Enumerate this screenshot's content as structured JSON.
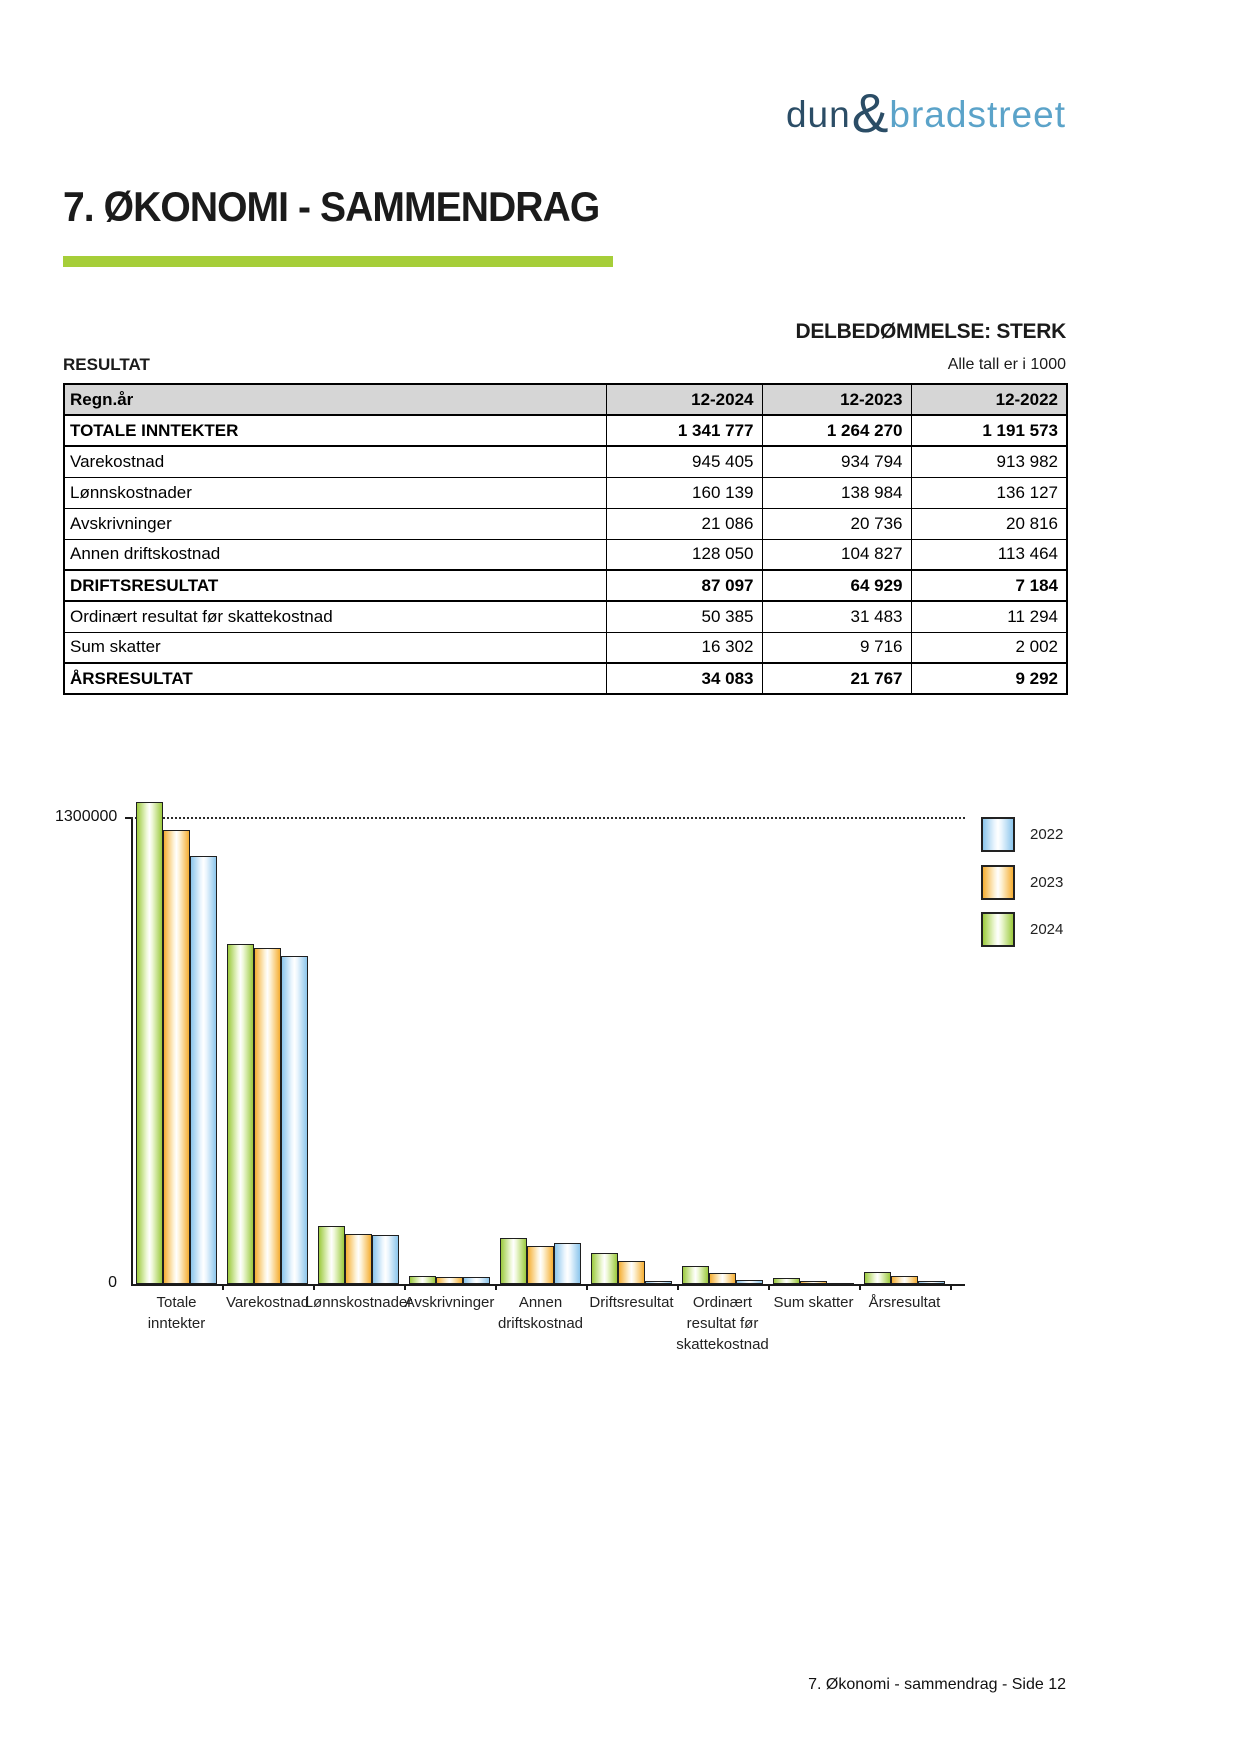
{
  "logo": {
    "part1": "dun",
    "amp": "&",
    "part2": "bradstreet"
  },
  "header": {
    "title": "7. ØKONOMI - SAMMENDRAG",
    "assessment": "DELBEDØMMELSE: STERK"
  },
  "table": {
    "title": "RESULTAT",
    "unit_note": "Alle tall er i 1000",
    "columns": [
      "Regn.år",
      "12-2024",
      "12-2023",
      "12-2022"
    ],
    "rows": [
      {
        "label": "TOTALE INNTEKTER",
        "values": [
          "1 341 777",
          "1 264 270",
          "1 191 573"
        ],
        "bold": true
      },
      {
        "label": "Varekostnad",
        "values": [
          "945 405",
          "934 794",
          "913 982"
        ],
        "bold": false
      },
      {
        "label": "Lønnskostnader",
        "values": [
          "160 139",
          "138 984",
          "136 127"
        ],
        "bold": false
      },
      {
        "label": "Avskrivninger",
        "values": [
          "21 086",
          "20 736",
          "20 816"
        ],
        "bold": false
      },
      {
        "label": "Annen driftskostnad",
        "values": [
          "128 050",
          "104 827",
          "113 464"
        ],
        "bold": false
      },
      {
        "label": "DRIFTSRESULTAT",
        "values": [
          "87 097",
          "64 929",
          "7 184"
        ],
        "bold": true
      },
      {
        "label": "Ordinært resultat før skattekostnad",
        "values": [
          "50 385",
          "31 483",
          "11 294"
        ],
        "bold": false
      },
      {
        "label": "Sum skatter",
        "values": [
          "16 302",
          "9 716",
          "2 002"
        ],
        "bold": false
      },
      {
        "label": "ÅRSRESULTAT",
        "values": [
          "34 083",
          "21 767",
          "9 292"
        ],
        "bold": true
      }
    ]
  },
  "chart_data": {
    "type": "bar",
    "categories": [
      [
        "Totale",
        "inntekter"
      ],
      [
        "Varekostnad"
      ],
      [
        "Lønnskostnader"
      ],
      [
        "Avskrivninger"
      ],
      [
        "Annen",
        "driftskostnad"
      ],
      [
        "Driftsresultat"
      ],
      [
        "Ordinært",
        "resultat før",
        "skattekostnad"
      ],
      [
        "Sum skatter"
      ],
      [
        "Årsresultat"
      ]
    ],
    "series": [
      {
        "name": "2024",
        "color_key": "green",
        "values": [
          1341777,
          945405,
          160139,
          21086,
          128050,
          87097,
          50385,
          16302,
          34083
        ]
      },
      {
        "name": "2023",
        "color_key": "yellow",
        "values": [
          1264270,
          934794,
          138984,
          20736,
          104827,
          64929,
          31483,
          9716,
          21767
        ]
      },
      {
        "name": "2022",
        "color_key": "blue",
        "values": [
          1191573,
          913982,
          136127,
          20816,
          113464,
          7184,
          11294,
          2002,
          9292
        ]
      }
    ],
    "legend": [
      {
        "label": "2022",
        "color_key": "blue"
      },
      {
        "label": "2023",
        "color_key": "yellow"
      },
      {
        "label": "2024",
        "color_key": "green"
      }
    ],
    "legend_position": "right",
    "grid": "single-dotted-line-at-top-tick",
    "ylim": [
      0,
      1300000
    ],
    "gridline_value": 1300000,
    "y_tick_labels": {
      "top": "1300000",
      "zero": "0"
    },
    "title": "",
    "xlabel": "",
    "ylabel": ""
  },
  "colors": {
    "accent_green": "#a6ce39",
    "logo_dark": "#2b4d66",
    "logo_light": "#5ba3c9",
    "table_header_bg": "#d6d6d6",
    "bar_green": "#9cca3e",
    "bar_green_light": "#edf7d5",
    "bar_yellow": "#f5ae33",
    "bar_yellow_light": "#fdf1d4",
    "bar_blue": "#8cc6ec",
    "bar_blue_light": "#eaf5fd"
  },
  "footer": {
    "text": "7. Økonomi - sammendrag - Side 12"
  }
}
